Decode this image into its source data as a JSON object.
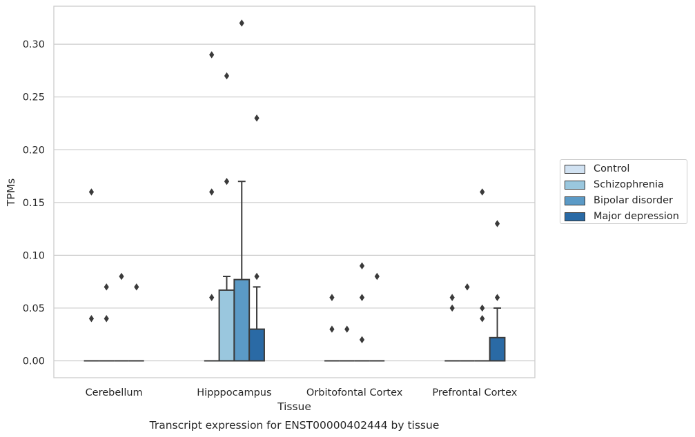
{
  "chart_data": {
    "type": "boxplot",
    "title": "Transcript expression for ENST00000402444 by tissue",
    "xlabel": "Tissue",
    "ylabel": "TPMs",
    "ylim": [
      -0.016,
      0.336
    ],
    "yticks": [
      "0.00",
      "0.05",
      "0.10",
      "0.15",
      "0.20",
      "0.25",
      "0.30"
    ],
    "categories": [
      "Cerebellum",
      "Hipppocampus",
      "Orbitofontal Cortex",
      "Prefrontal Cortex"
    ],
    "grid": true,
    "legend_position": "right",
    "series": [
      {
        "name": "Control",
        "color": "#d1e2f2",
        "boxes": [
          {
            "q1": 0,
            "median": 0,
            "q3": 0,
            "whisker_low": 0,
            "whisker_high": 0,
            "outliers": [
              0.16,
              0.04
            ]
          },
          {
            "q1": 0,
            "median": 0,
            "q3": 0,
            "whisker_low": 0,
            "whisker_high": 0,
            "outliers": [
              0.29,
              0.16,
              0.06
            ]
          },
          {
            "q1": 0,
            "median": 0,
            "q3": 0,
            "whisker_low": 0,
            "whisker_high": 0,
            "outliers": [
              0.06,
              0.03
            ]
          },
          {
            "q1": 0,
            "median": 0,
            "q3": 0,
            "whisker_low": 0,
            "whisker_high": 0,
            "outliers": [
              0.06,
              0.05
            ]
          }
        ]
      },
      {
        "name": "Schizophrenia",
        "color": "#9ac7de",
        "boxes": [
          {
            "q1": 0,
            "median": 0,
            "q3": 0,
            "whisker_low": 0,
            "whisker_high": 0,
            "outliers": [
              0.07,
              0.04
            ]
          },
          {
            "q1": 0,
            "median": 0,
            "q3": 0.067,
            "whisker_low": 0,
            "whisker_high": 0.08,
            "outliers": [
              0.27,
              0.17
            ]
          },
          {
            "q1": 0,
            "median": 0,
            "q3": 0,
            "whisker_low": 0,
            "whisker_high": 0,
            "outliers": [
              0.03
            ]
          },
          {
            "q1": 0,
            "median": 0,
            "q3": 0,
            "whisker_low": 0,
            "whisker_high": 0,
            "outliers": [
              0.07
            ]
          }
        ]
      },
      {
        "name": "Bipolar disorder",
        "color": "#5b9ac6",
        "boxes": [
          {
            "q1": 0,
            "median": 0,
            "q3": 0,
            "whisker_low": 0,
            "whisker_high": 0,
            "outliers": [
              0.08
            ]
          },
          {
            "q1": 0,
            "median": 0,
            "q3": 0.077,
            "whisker_low": 0,
            "whisker_high": 0.17,
            "outliers": [
              0.32
            ]
          },
          {
            "q1": 0,
            "median": 0,
            "q3": 0,
            "whisker_low": 0,
            "whisker_high": 0,
            "outliers": [
              0.09,
              0.06,
              0.02
            ]
          },
          {
            "q1": 0,
            "median": 0,
            "q3": 0,
            "whisker_low": 0,
            "whisker_high": 0,
            "outliers": [
              0.16,
              0.05,
              0.04
            ]
          }
        ]
      },
      {
        "name": "Major depression",
        "color": "#2a6aa5",
        "boxes": [
          {
            "q1": 0,
            "median": 0,
            "q3": 0,
            "whisker_low": 0,
            "whisker_high": 0,
            "outliers": [
              0.07
            ]
          },
          {
            "q1": 0,
            "median": 0,
            "q3": 0.03,
            "whisker_low": 0,
            "whisker_high": 0.07,
            "outliers": [
              0.23,
              0.08
            ]
          },
          {
            "q1": 0,
            "median": 0,
            "q3": 0,
            "whisker_low": 0,
            "whisker_high": 0,
            "outliers": [
              0.08
            ]
          },
          {
            "q1": 0,
            "median": 0,
            "q3": 0.022,
            "whisker_low": 0,
            "whisker_high": 0.05,
            "outliers": [
              0.13,
              0.06
            ]
          }
        ]
      }
    ]
  }
}
